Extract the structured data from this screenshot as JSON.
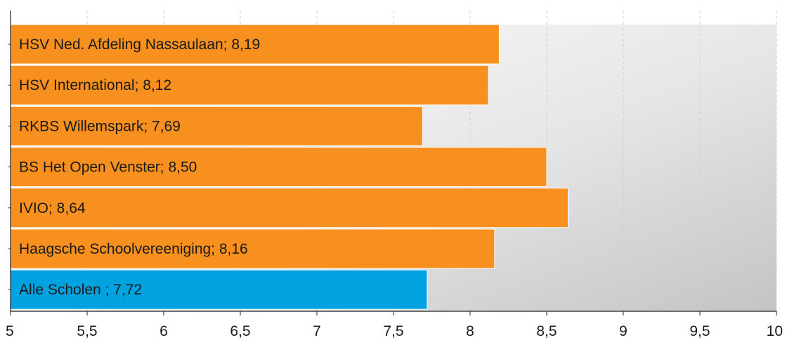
{
  "chart_data": {
    "type": "bar",
    "orientation": "horizontal",
    "categories": [
      "HSV Ned. Afdeling Nassaulaan",
      "HSV International",
      "RKBS Willemspark",
      "BS Het Open Venster",
      "IVIO",
      "Haagsche Schoolvereeniging",
      "Alle Scholen"
    ],
    "values": [
      8.19,
      8.12,
      7.69,
      8.5,
      8.64,
      8.16,
      7.72
    ],
    "data_labels": [
      "HSV Ned. Afdeling Nassaulaan; 8,19",
      "HSV International; 8,12",
      "RKBS Willemspark; 7,69",
      "BS Het Open Venster; 8,50",
      "IVIO; 8,64",
      "Haagsche Schoolvereeniging; 8,16",
      "Alle Scholen ; 7,72"
    ],
    "bar_colors": [
      "#f7901e",
      "#f7901e",
      "#f7901e",
      "#f7901e",
      "#f7901e",
      "#f7901e",
      "#00a3e0"
    ],
    "xlim": [
      5,
      10
    ],
    "x_ticks": [
      5,
      5.5,
      6,
      6.5,
      7,
      7.5,
      8,
      8.5,
      9,
      9.5,
      10
    ],
    "x_tick_labels": [
      "5",
      "5,5",
      "6",
      "6,5",
      "7",
      "7,5",
      "8",
      "8,5",
      "9",
      "9,5",
      "10"
    ],
    "title": "",
    "xlabel": "",
    "ylabel": "",
    "grid": true,
    "legend": "none"
  }
}
